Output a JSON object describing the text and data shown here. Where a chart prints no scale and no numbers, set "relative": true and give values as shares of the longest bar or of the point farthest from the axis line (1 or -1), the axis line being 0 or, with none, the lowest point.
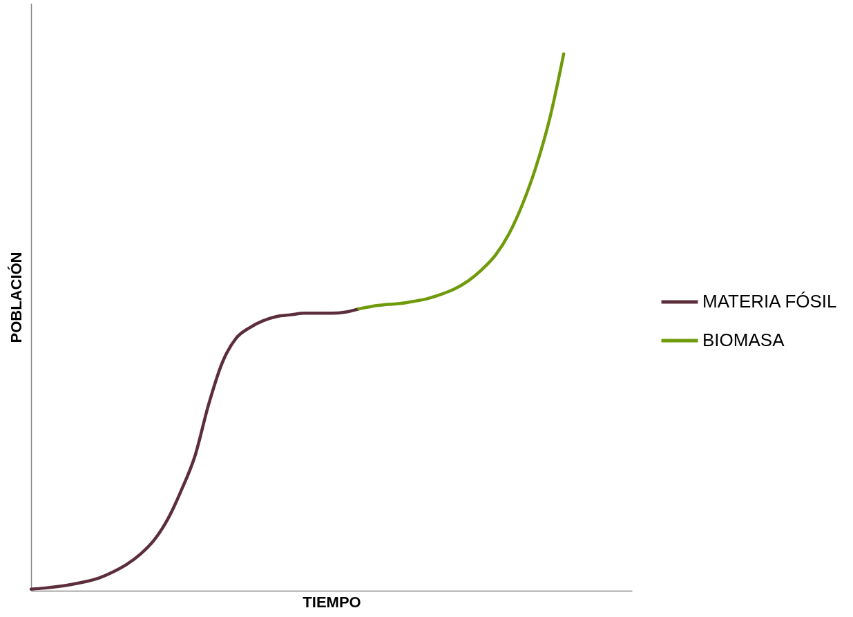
{
  "chart_data": {
    "type": "line",
    "relative": true,
    "xlabel": "TIEMPO",
    "ylabel": "POBLACIÓN",
    "tick_labels": false,
    "grid": false,
    "legend": "right",
    "marker": "none",
    "line_style": "solid",
    "categories": [
      null,
      null,
      null,
      null,
      null,
      null,
      null,
      null,
      null,
      null,
      null,
      null,
      null,
      null,
      null,
      null,
      null,
      null,
      null,
      null,
      null,
      null,
      null,
      null,
      null,
      null,
      null,
      null,
      null,
      null,
      null,
      null,
      null,
      null,
      null,
      null,
      null,
      null,
      null,
      null,
      null,
      null,
      null,
      null,
      null
    ],
    "series": [
      {
        "name": "MATERIA FÓSIL",
        "color": "#5c2d3a",
        "values": [
          0.003,
          0.005,
          0.008,
          0.012,
          0.017,
          0.024,
          0.035,
          0.049,
          0.068,
          0.094,
          0.133,
          0.187,
          0.251,
          0.347,
          0.425,
          0.47,
          0.49,
          0.503,
          0.511,
          0.514,
          0.517,
          0.517,
          0.517,
          0.519,
          0.525,
          null,
          null,
          null,
          null,
          null,
          null,
          null,
          null,
          null,
          null,
          null,
          null,
          null,
          null,
          null,
          null,
          null,
          null,
          null,
          null
        ]
      },
      {
        "name": "BIOMASA",
        "color": "#6f9a0a",
        "values": [
          null,
          null,
          null,
          null,
          null,
          null,
          null,
          null,
          null,
          null,
          null,
          null,
          null,
          null,
          null,
          null,
          null,
          null,
          null,
          null,
          null,
          null,
          null,
          null,
          0.525,
          0.53,
          0.533,
          0.535,
          0.539,
          0.544,
          0.552,
          0.562,
          0.577,
          0.598,
          0.625,
          0.665,
          0.721,
          0.792,
          0.882,
          1,
          null,
          null,
          null,
          null,
          null
        ]
      }
    ]
  }
}
